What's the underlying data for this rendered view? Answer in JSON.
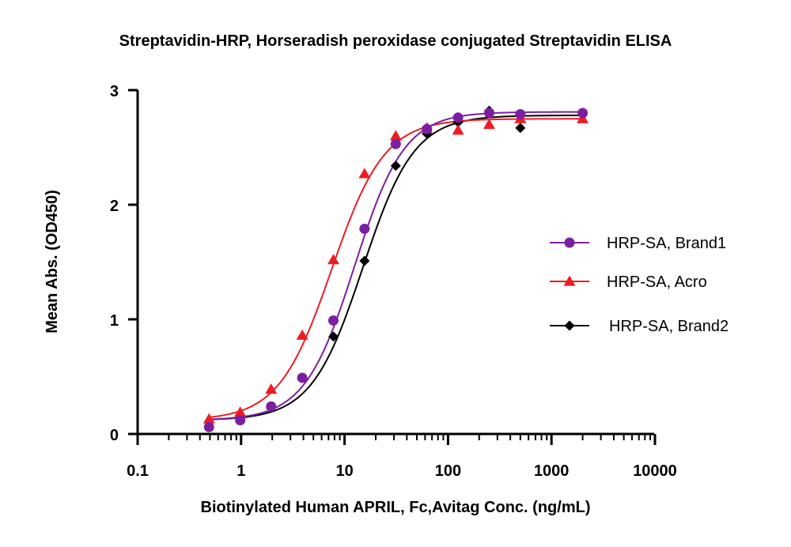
{
  "chart_data": {
    "type": "scatter",
    "title": "Streptavidin-HRP, Horseradish peroxidase conjugated Streptavidin ELISA",
    "xlabel": "Biotinylated Human APRIL, Fc,Avitag Conc. (ng/mL)",
    "ylabel": "Mean Abs. (OD450)",
    "xscale": "log",
    "xlim": [
      0.1,
      10000
    ],
    "ylim": [
      0,
      3
    ],
    "x_ticks": [
      "0.1",
      "1",
      "10",
      "100",
      "1000",
      "10000"
    ],
    "y_ticks": [
      "0",
      "1",
      "2",
      "3"
    ],
    "grid": false,
    "legend_position": "right",
    "series": [
      {
        "name": "HRP-SA, Brand1",
        "color": "#7b1fa2",
        "marker": "circle",
        "x": [
          0.49,
          0.98,
          1.95,
          3.9,
          7.8,
          15.6,
          31.25,
          62.5,
          125,
          250,
          500,
          2000
        ],
        "y": [
          0.06,
          0.12,
          0.24,
          0.49,
          0.99,
          1.79,
          2.53,
          2.66,
          2.76,
          2.8,
          2.79,
          2.8
        ],
        "fit": {
          "bottom": 0.12,
          "top": 2.81,
          "ec50": 12.5,
          "hill": 1.8
        }
      },
      {
        "name": "HRP-SA, Acro",
        "color": "#ee1c24",
        "marker": "triangle",
        "x": [
          0.49,
          0.98,
          1.95,
          3.9,
          7.8,
          15.6,
          31.25,
          62.5,
          125,
          250,
          500,
          2000
        ],
        "y": [
          0.13,
          0.19,
          0.39,
          0.86,
          1.52,
          2.27,
          2.6,
          2.67,
          2.65,
          2.7,
          2.75,
          2.75
        ],
        "fit": {
          "bottom": 0.12,
          "top": 2.75,
          "ec50": 7.5,
          "hill": 1.7
        }
      },
      {
        "name": "HRP-SA, Brand2",
        "color": "#000000",
        "marker": "diamond",
        "x": [
          7.8,
          15.6,
          31.25,
          62.5,
          125,
          250,
          500
        ],
        "y": [
          0.85,
          1.51,
          2.34,
          2.62,
          2.72,
          2.82,
          2.67
        ],
        "fit": {
          "bottom": 0.12,
          "top": 2.78,
          "ec50": 15,
          "hill": 1.75
        }
      }
    ]
  }
}
